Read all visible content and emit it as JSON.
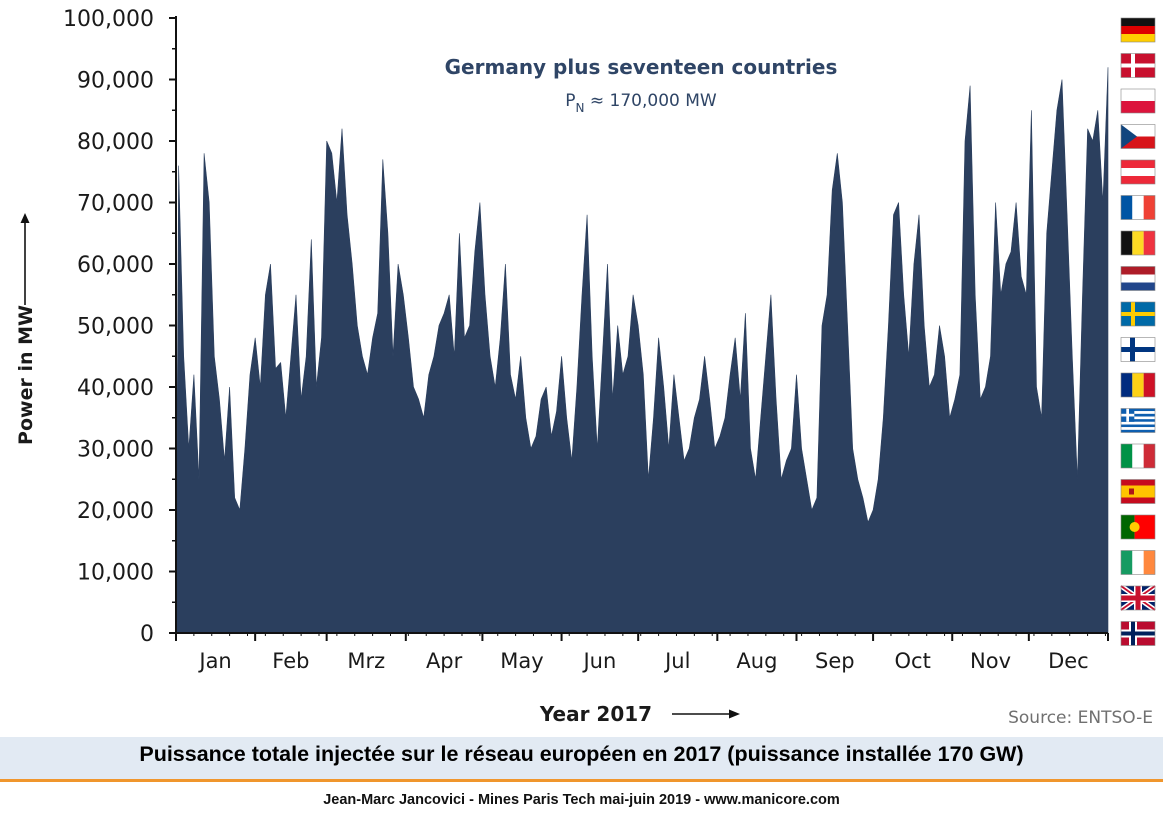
{
  "chart_data": {
    "type": "area",
    "title": "Germany plus seventeen countries",
    "subtitle": "PN ≈ 170,000 MW",
    "subtitle_parts": {
      "p": "P",
      "sub": "N",
      "rest": " ≈ 170,000 MW"
    },
    "ylabel": "Power in MW",
    "xlabel": "Year 2017",
    "ylim": [
      0,
      100000
    ],
    "yticks": [
      "0",
      "10,000",
      "20,000",
      "30,000",
      "40,000",
      "50,000",
      "60,000",
      "70,000",
      "80,000",
      "90,000",
      "100,000"
    ],
    "months": [
      "Jan",
      "Feb",
      "Mrz",
      "Apr",
      "May",
      "Jun",
      "Jul",
      "Aug",
      "Sep",
      "Oct",
      "Nov",
      "Dec"
    ],
    "source": "Source: ENTSO-E",
    "fill_color": "#2b3f5e",
    "series": [
      {
        "x": [
          1,
          3,
          5,
          7,
          9,
          11,
          13,
          15,
          17,
          19,
          21,
          23,
          25,
          27,
          29,
          31,
          33,
          35,
          37,
          39,
          41,
          43,
          45,
          47,
          49,
          51,
          53,
          55,
          57,
          59,
          61,
          63,
          65,
          67,
          69,
          71,
          73,
          75,
          77,
          79,
          81,
          83,
          85,
          87,
          89,
          91,
          93,
          95,
          97,
          99,
          101,
          103,
          105,
          107,
          109,
          111,
          113,
          115,
          117,
          119,
          121,
          123,
          125,
          127,
          129,
          131,
          133,
          135,
          137,
          139,
          141,
          143,
          145,
          147,
          149,
          151,
          153,
          155,
          157,
          159,
          161,
          163,
          165,
          167,
          169,
          171,
          173,
          175,
          177,
          179,
          181,
          183,
          185,
          187,
          189,
          191,
          193,
          195,
          197,
          199,
          201,
          203,
          205,
          207,
          209,
          211,
          213,
          215,
          217,
          219,
          221,
          223,
          225,
          227,
          229,
          231,
          233,
          235,
          237,
          239,
          241,
          243,
          245,
          247,
          249,
          251,
          253,
          255,
          257,
          259,
          261,
          263,
          265,
          267,
          269,
          271,
          273,
          275,
          277,
          279,
          281,
          283,
          285,
          287,
          289,
          291,
          293,
          295,
          297,
          299,
          301,
          303,
          305,
          307,
          309,
          311,
          313,
          315,
          317,
          319,
          321,
          323,
          325,
          327,
          329,
          331,
          333,
          335,
          337,
          339,
          341,
          343,
          345,
          347,
          349,
          351,
          353,
          355,
          357,
          359,
          361,
          363,
          365
        ],
        "y": [
          76000,
          45000,
          30000,
          42000,
          25000,
          78000,
          70000,
          45000,
          38000,
          28000,
          40000,
          22000,
          20000,
          30000,
          42000,
          48000,
          40000,
          55000,
          60000,
          43000,
          44000,
          35000,
          45000,
          55000,
          38000,
          45000,
          64000,
          40000,
          48000,
          80000,
          78000,
          70000,
          82000,
          68000,
          60000,
          50000,
          45000,
          42000,
          48000,
          52000,
          77000,
          65000,
          45000,
          60000,
          55000,
          48000,
          40000,
          38000,
          35000,
          42000,
          45000,
          50000,
          52000,
          55000,
          45000,
          65000,
          48000,
          50000,
          62000,
          70000,
          55000,
          45000,
          40000,
          48000,
          60000,
          42000,
          38000,
          45000,
          35000,
          30000,
          32000,
          38000,
          40000,
          32000,
          36000,
          45000,
          35000,
          28000,
          40000,
          55000,
          68000,
          45000,
          30000,
          45000,
          60000,
          38000,
          50000,
          42000,
          45000,
          55000,
          50000,
          42000,
          25000,
          35000,
          48000,
          40000,
          30000,
          42000,
          35000,
          28000,
          30000,
          35000,
          38000,
          45000,
          38000,
          30000,
          32000,
          35000,
          42000,
          48000,
          38000,
          52000,
          30000,
          25000,
          35000,
          45000,
          55000,
          38000,
          25000,
          28000,
          30000,
          42000,
          30000,
          25000,
          20000,
          22000,
          50000,
          55000,
          72000,
          78000,
          70000,
          50000,
          30000,
          25000,
          22000,
          18000,
          20000,
          25000,
          35000,
          50000,
          68000,
          70000,
          55000,
          45000,
          60000,
          68000,
          50000,
          40000,
          42000,
          50000,
          45000,
          35000,
          38000,
          42000,
          80000,
          89000,
          55000,
          38000,
          40000,
          45000,
          70000,
          55000,
          60000,
          62000,
          70000,
          58000,
          55000,
          85000,
          40000,
          35000,
          65000,
          75000,
          85000,
          90000,
          68000,
          45000,
          25000,
          55000,
          82000,
          80000,
          85000,
          70000,
          92000
        ]
      }
    ]
  },
  "flags": [
    "germany-flag",
    "denmark-flag",
    "poland-flag",
    "czech-flag",
    "austria-flag",
    "france-flag",
    "belgium-flag",
    "netherlands-flag",
    "sweden-flag",
    "finland-flag",
    "romania-flag",
    "greece-flag",
    "italy-flag",
    "spain-flag",
    "portugal-flag",
    "ireland-flag",
    "uk-flag",
    "norway-flag"
  ],
  "caption": "Puissance totale injectée sur le réseau européen en 2017 (puissance installée 170 GW)",
  "footer": "Jean-Marc Jancovici - Mines Paris Tech mai-juin 2019 - www.manicore.com"
}
